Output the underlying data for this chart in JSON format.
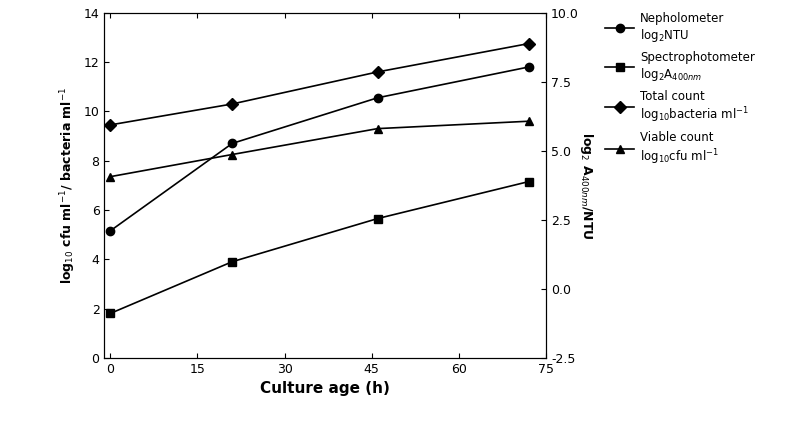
{
  "x": [
    0,
    21,
    46,
    72
  ],
  "nepholometer": [
    5.15,
    8.7,
    10.55,
    11.8
  ],
  "spectrophotometer": [
    1.8,
    3.9,
    5.65,
    7.15
  ],
  "total_count": [
    9.45,
    10.3,
    11.6,
    12.75
  ],
  "viable_count": [
    7.35,
    8.25,
    9.3,
    9.6
  ],
  "xlabel": "Culture age (h)",
  "ylabel_left": "log$_{10}$ cfu ml$^{-1}$/ bacteria ml$^{-1}$",
  "ylabel_right": "log$_2$ A$_{400nm}$/NTU",
  "ylim_left": [
    0,
    14
  ],
  "ylim_right": [
    -2.5,
    10.0
  ],
  "xlim": [
    -1,
    75
  ],
  "xticks": [
    0,
    15,
    30,
    45,
    60,
    75
  ],
  "yticks_left": [
    0,
    2,
    4,
    6,
    8,
    10,
    12,
    14
  ],
  "yticks_right": [
    -2.5,
    0.0,
    2.5,
    5.0,
    7.5,
    10.0
  ],
  "legend_nepholometer_line1": "Nepholometer",
  "legend_nepholometer_line2": "log$_2$NTU",
  "legend_spectrophotometer_line1": "Spectrophotometer",
  "legend_spectrophotometer_line2": "log$_2$A$_{400nm}$",
  "legend_total_line1": "Total count",
  "legend_total_line2": "log$_{10}$bacteria ml$^{-1}$",
  "legend_viable_line1": "Viable count",
  "legend_viable_line2": "log$_{10}$cfu ml$^{-1}$",
  "color": "black",
  "linewidth": 1.2,
  "markersize": 6,
  "background": "#ffffff",
  "fig_width": 8.03,
  "fig_height": 4.26,
  "dpi": 100
}
